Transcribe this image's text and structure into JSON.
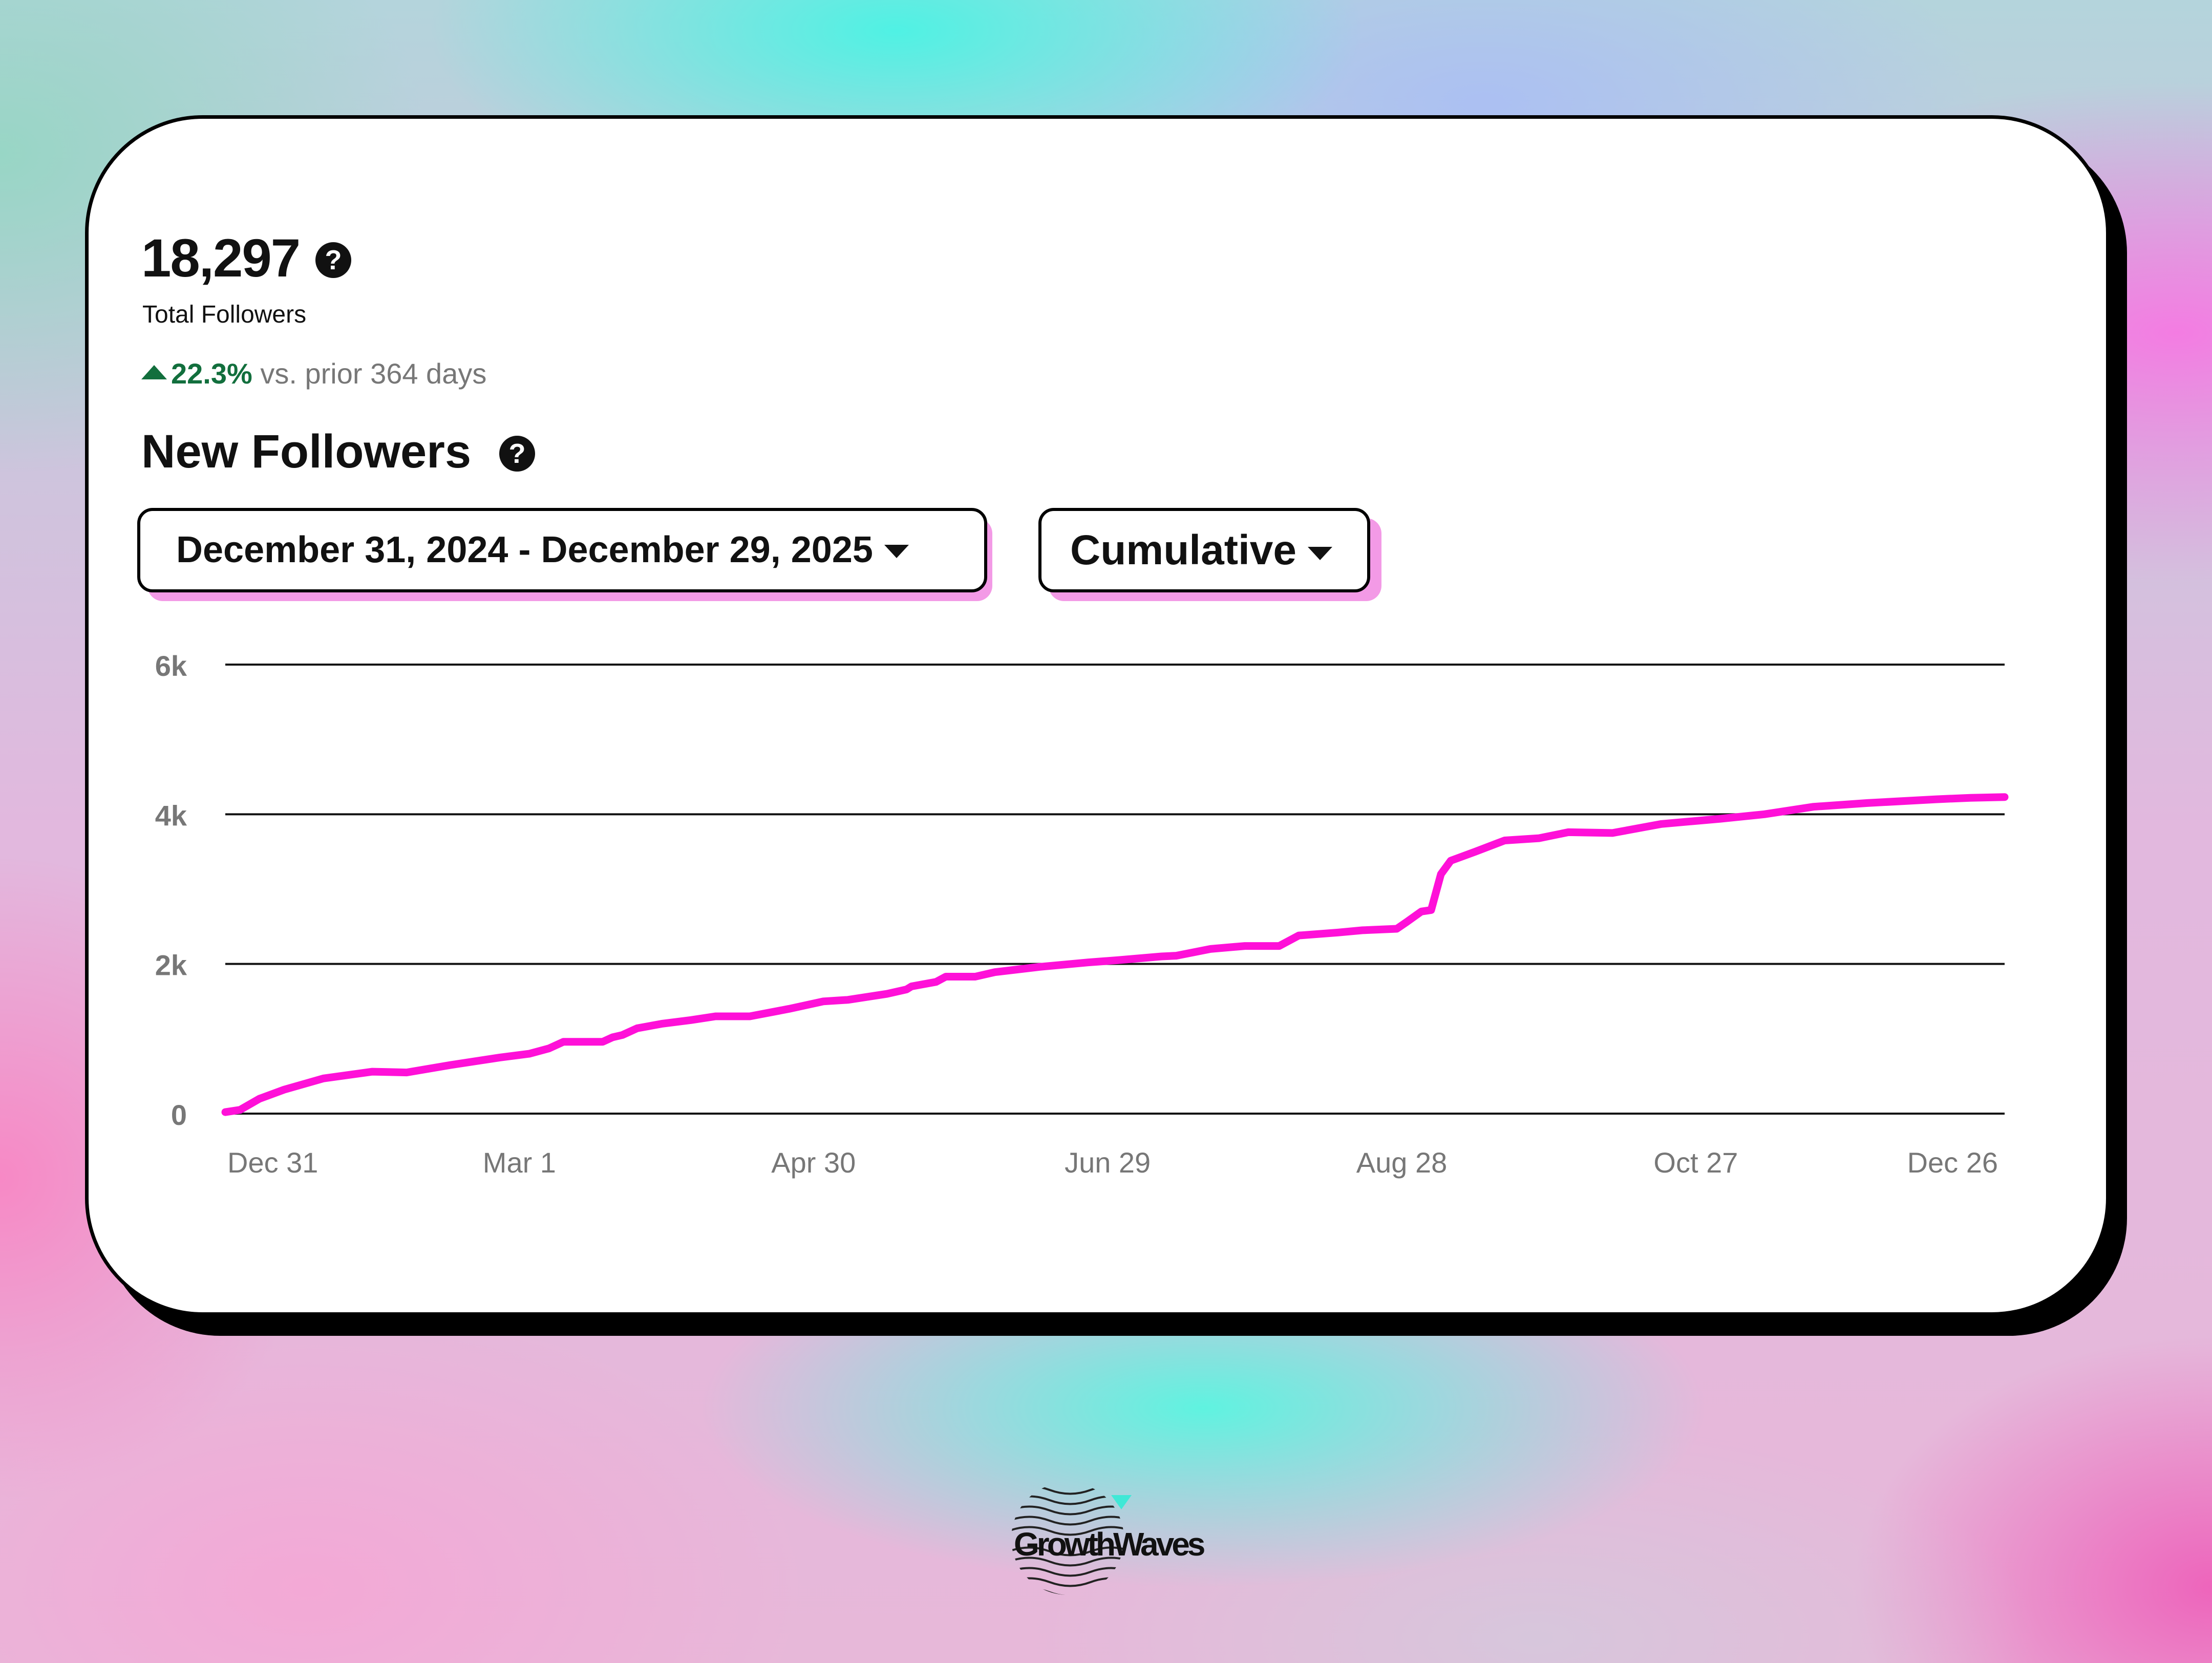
{
  "summary": {
    "total_value": "18,297",
    "total_label": "Total Followers",
    "change_pct": "22.3%",
    "change_text": "vs. prior 364 days"
  },
  "section_title": "New Followers",
  "controls": {
    "date_range_label": "December 31, 2024 - December 29, 2025",
    "mode_label": "Cumulative"
  },
  "brand": {
    "logo_text": "GrowthWaves"
  },
  "colors": {
    "line": "#ff10d8",
    "accent_shadow": "#f39ae6",
    "positive": "#126f3d"
  },
  "chart_data": {
    "type": "line",
    "title": "",
    "xlabel": "",
    "ylabel": "",
    "ylim": [
      0,
      6000
    ],
    "yticks": [
      0,
      2000,
      4000,
      6000
    ],
    "ytick_labels": [
      "0",
      "2k",
      "4k",
      "6k"
    ],
    "xtick_labels": [
      "Dec 31",
      "Mar 1",
      "Apr 30",
      "Jun 29",
      "Aug 28",
      "Oct 27",
      "Dec 26"
    ],
    "xticks": [
      "2024-12-31",
      "2025-03-01",
      "2025-04-30",
      "2025-06-29",
      "2025-08-28",
      "2025-10-27",
      "2025-12-26"
    ],
    "xlim": [
      "2024-12-31",
      "2025-12-29"
    ],
    "grid": true,
    "legend": "none",
    "series": [
      {
        "x": [
          "2024-12-31",
          "2025-01-03",
          "2025-01-07",
          "2025-01-12",
          "2025-01-20",
          "2025-01-30",
          "2025-02-06",
          "2025-02-15",
          "2025-02-25",
          "2025-03-03",
          "2025-03-07",
          "2025-03-10",
          "2025-03-18",
          "2025-03-20",
          "2025-03-22",
          "2025-03-25",
          "2025-03-30",
          "2025-04-05",
          "2025-04-10",
          "2025-04-17",
          "2025-04-25",
          "2025-05-02",
          "2025-05-07",
          "2025-05-15",
          "2025-05-19",
          "2025-05-20",
          "2025-05-25",
          "2025-05-27",
          "2025-06-02",
          "2025-06-06",
          "2025-06-15",
          "2025-06-25",
          "2025-07-01",
          "2025-07-10",
          "2025-07-13",
          "2025-07-20",
          "2025-07-27",
          "2025-08-03",
          "2025-08-07",
          "2025-08-15",
          "2025-08-20",
          "2025-08-27",
          "2025-08-29",
          "2025-09-01",
          "2025-09-03",
          "2025-09-05",
          "2025-09-07",
          "2025-09-12",
          "2025-09-18",
          "2025-09-25",
          "2025-10-01",
          "2025-10-10",
          "2025-10-20",
          "2025-11-01",
          "2025-11-10",
          "2025-11-20",
          "2025-12-01",
          "2025-12-15",
          "2025-12-22",
          "2025-12-29"
        ],
        "values": [
          20,
          50,
          200,
          320,
          470,
          560,
          550,
          650,
          750,
          800,
          870,
          960,
          960,
          1020,
          1050,
          1140,
          1200,
          1250,
          1300,
          1300,
          1400,
          1500,
          1520,
          1600,
          1660,
          1700,
          1760,
          1830,
          1830,
          1890,
          1960,
          2020,
          2050,
          2100,
          2110,
          2200,
          2240,
          2240,
          2380,
          2420,
          2450,
          2470,
          2560,
          2700,
          2720,
          3200,
          3380,
          3500,
          3650,
          3680,
          3760,
          3750,
          3870,
          3940,
          4000,
          4100,
          4150,
          4200,
          4220,
          4230
        ]
      }
    ]
  }
}
